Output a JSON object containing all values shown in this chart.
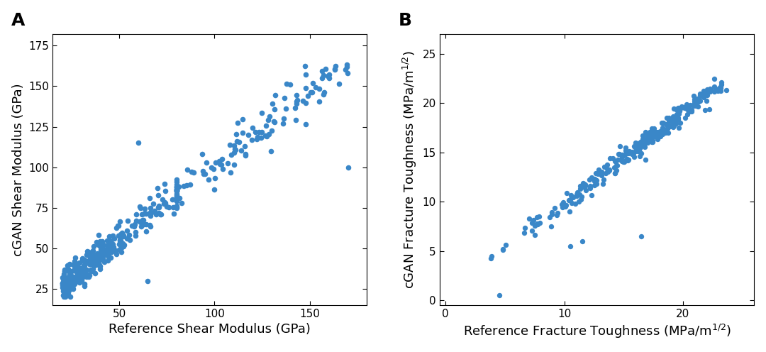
{
  "panel_A": {
    "label": "A",
    "xlabel": "Reference Shear Modulus (GPa)",
    "ylabel": "cGAN Shear Modulus (GPa)",
    "xlim": [
      15,
      180
    ],
    "ylim": [
      15,
      182
    ],
    "xticks": [
      50,
      100,
      150
    ],
    "yticks": [
      25,
      50,
      75,
      100,
      125,
      150,
      175
    ],
    "color": "#3a87c8",
    "markersize": 30,
    "alpha": 1.0
  },
  "panel_B": {
    "label": "B",
    "xlabel": "Reference Fracture Toughness (MPa/m$^{1/2}$)",
    "ylabel": "cGAN Fracture Toughness (MPa/m$^{1/2}$)",
    "xlim": [
      -0.5,
      26
    ],
    "ylim": [
      -0.5,
      27
    ],
    "xticks": [
      0,
      10,
      20
    ],
    "yticks": [
      0,
      5,
      10,
      15,
      20,
      25
    ],
    "color": "#3a87c8",
    "markersize": 28,
    "alpha": 1.0
  },
  "background_color": "#ffffff",
  "label_fontsize": 13,
  "tick_fontsize": 11,
  "panel_label_fontsize": 18
}
